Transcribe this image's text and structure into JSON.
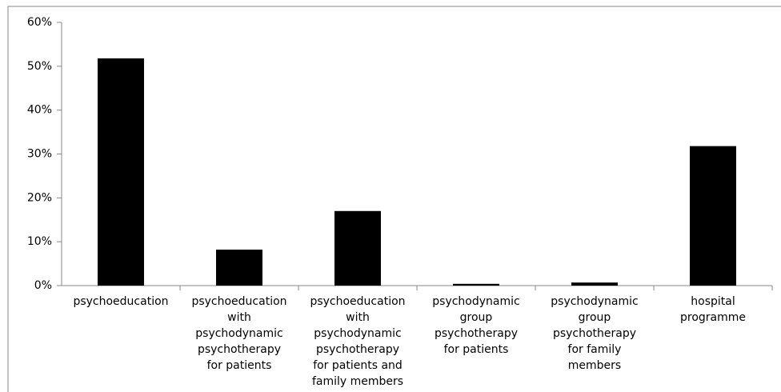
{
  "chart_data": {
    "type": "bar",
    "categories": [
      "psychoeducation",
      "psychoeducation with psychodynamic psychotherapy for patients",
      "psychoeducation with psychodynamic psychotherapy for patients and family members",
      "psychodynamic group psychotherapy for patients",
      "psychodynamic group psychotherapy for family members",
      "hospital programme"
    ],
    "values": [
      51.8,
      8.2,
      17,
      0.4,
      0.7,
      31.8
    ],
    "color": "#000000",
    "ylim": [
      0,
      60
    ],
    "yticks": [
      {
        "value": 0,
        "label": "0%"
      },
      {
        "value": 10,
        "label": "10%"
      },
      {
        "value": 20,
        "label": "20%"
      },
      {
        "value": 30,
        "label": "30%"
      },
      {
        "value": 40,
        "label": "40%"
      },
      {
        "value": 50,
        "label": "50%"
      },
      {
        "value": 60,
        "label": "60%"
      }
    ],
    "grid": false
  }
}
